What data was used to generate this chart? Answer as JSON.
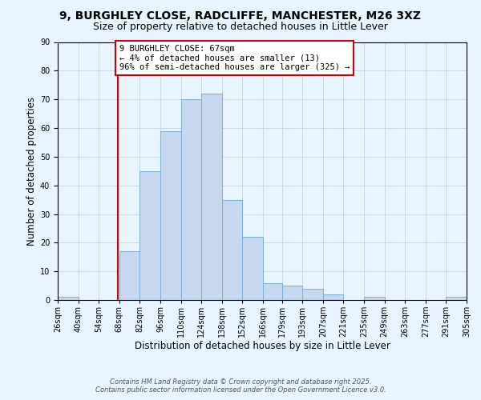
{
  "title_line1": "9, BURGHLEY CLOSE, RADCLIFFE, MANCHESTER, M26 3XZ",
  "title_line2": "Size of property relative to detached houses in Little Lever",
  "xlabel": "Distribution of detached houses by size in Little Lever",
  "ylabel": "Number of detached properties",
  "footer_line1": "Contains HM Land Registry data © Crown copyright and database right 2025.",
  "footer_line2": "Contains public sector information licensed under the Open Government Licence v3.0.",
  "annotation_line1": "9 BURGHLEY CLOSE: 67sqm",
  "annotation_line2": "← 4% of detached houses are smaller (13)",
  "annotation_line3": "96% of semi-detached houses are larger (325) →",
  "property_size": 67,
  "bar_edges": [
    26,
    40,
    54,
    68,
    82,
    96,
    110,
    124,
    138,
    152,
    166,
    179,
    193,
    207,
    221,
    235,
    249,
    263,
    277,
    291,
    305
  ],
  "bar_heights": [
    1,
    0,
    0,
    17,
    45,
    59,
    70,
    72,
    35,
    22,
    6,
    5,
    4,
    2,
    0,
    1,
    0,
    0,
    0,
    1
  ],
  "bar_color": "#c5d8f0",
  "bar_edgecolor": "#7bafd4",
  "vline_color": "#cc0000",
  "vline_x": 67,
  "annotation_box_edgecolor": "#cc0000",
  "annotation_box_facecolor": "#ffffff",
  "ylim": [
    0,
    90
  ],
  "yticks": [
    0,
    10,
    20,
    30,
    40,
    50,
    60,
    70,
    80,
    90
  ],
  "xtick_labels": [
    "26sqm",
    "40sqm",
    "54sqm",
    "68sqm",
    "82sqm",
    "96sqm",
    "110sqm",
    "124sqm",
    "138sqm",
    "152sqm",
    "166sqm",
    "179sqm",
    "193sqm",
    "207sqm",
    "221sqm",
    "235sqm",
    "249sqm",
    "263sqm",
    "277sqm",
    "291sqm",
    "305sqm"
  ],
  "grid_color": "#c8d8e8",
  "background_color": "#e8f4ff",
  "title_fontsize": 10,
  "subtitle_fontsize": 9,
  "axis_label_fontsize": 8.5,
  "tick_fontsize": 7,
  "annotation_fontsize": 7.5,
  "footer_fontsize": 6
}
